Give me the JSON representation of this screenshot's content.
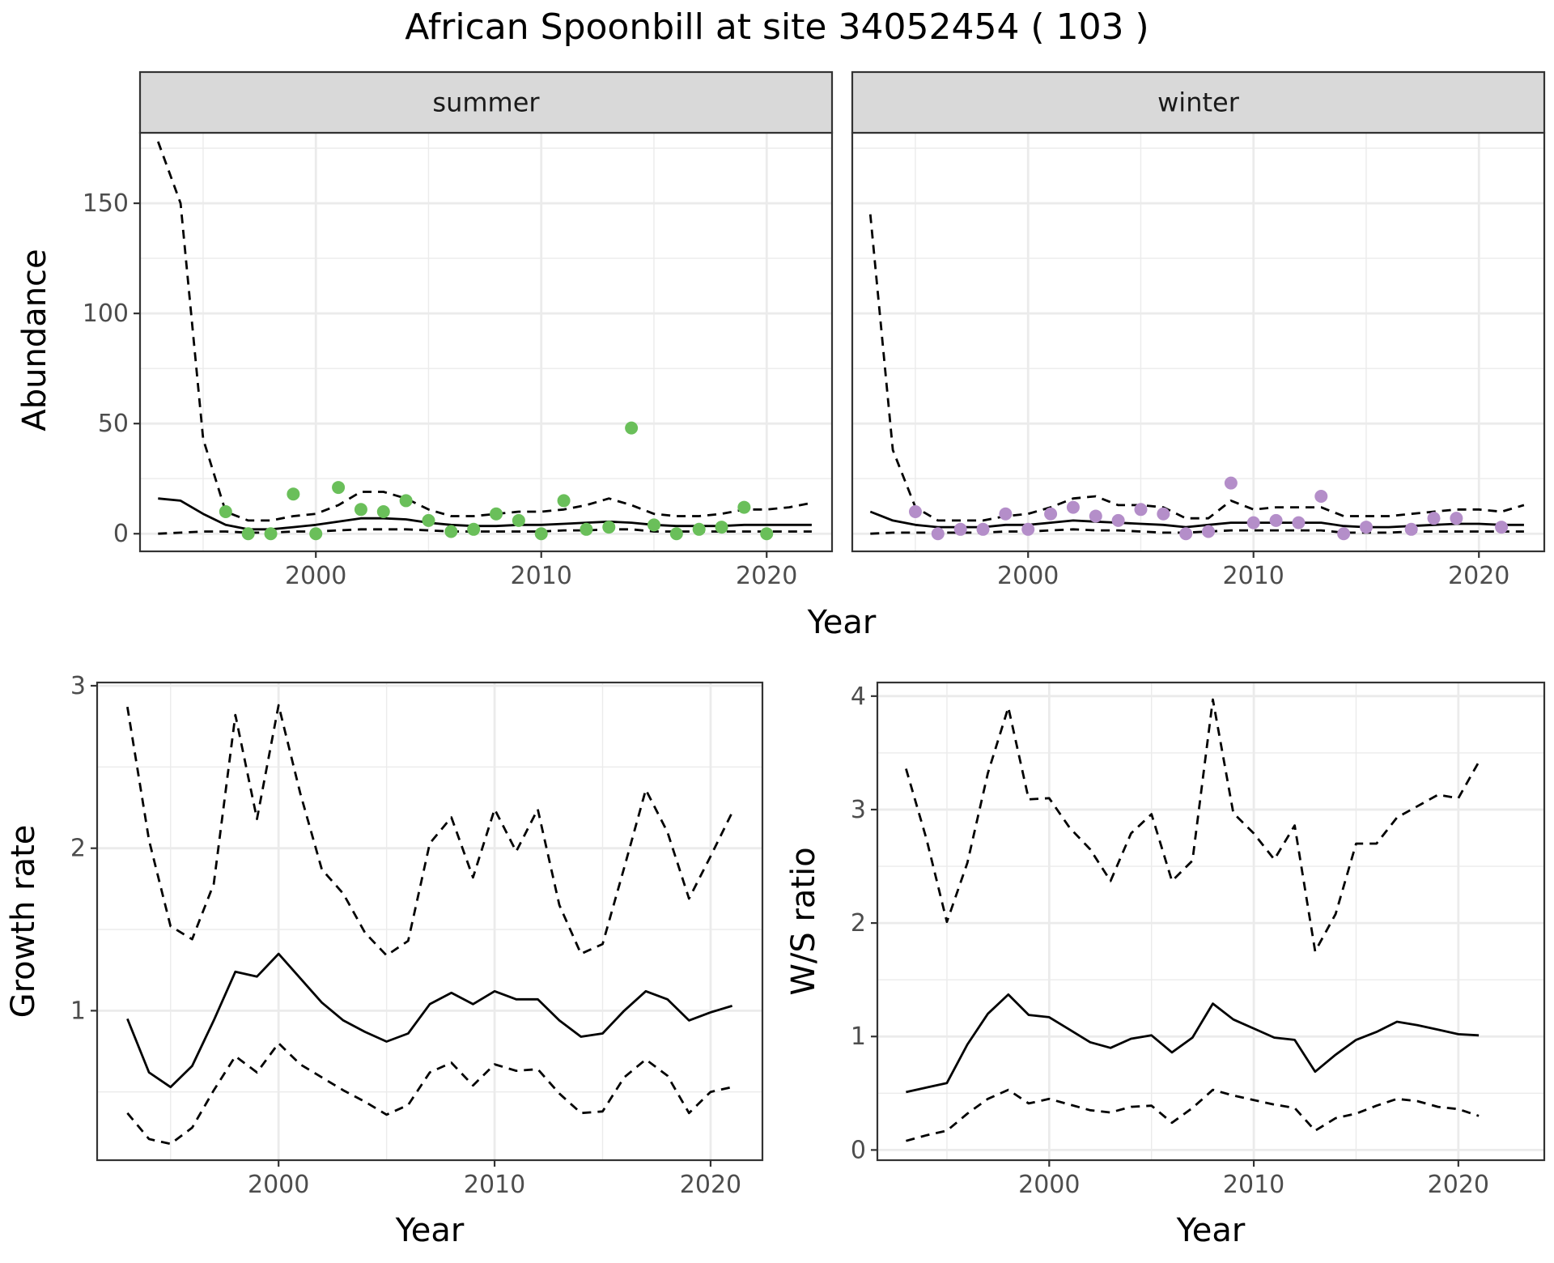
{
  "figure": {
    "title": "African Spoonbill at site 34052454 ( 103 )",
    "top_xlabel": "Year",
    "top_ylabel": "Abundance"
  },
  "colors": {
    "summer_points": "#6abf5a",
    "winter_points": "#b48ec9",
    "lines": "#000000",
    "strip_fill": "#d9d9d9",
    "grid": "#ebebeb"
  },
  "chart_data": [
    {
      "type": "scatter",
      "panel": "summer",
      "strip_label": "summer",
      "xlabel": "Year",
      "ylabel": "Abundance",
      "xlim": [
        1992.2,
        2022.9
      ],
      "ylim": [
        -8,
        182
      ],
      "xticks": [
        2000,
        2010,
        2020
      ],
      "yticks": [
        0,
        50,
        100,
        150
      ],
      "grid": true,
      "point_color": "#6abf5a",
      "points": {
        "x": [
          1996,
          1997,
          1998,
          1999,
          2000,
          2001,
          2002,
          2003,
          2004,
          2005,
          2006,
          2007,
          2008,
          2009,
          2010,
          2011,
          2012,
          2013,
          2014,
          2015,
          2016,
          2017,
          2018,
          2019,
          2020
        ],
        "y": [
          10,
          0,
          0,
          18,
          0,
          21,
          11,
          10,
          15,
          6,
          1,
          2,
          9,
          6,
          0,
          15,
          2,
          3,
          48,
          4,
          0,
          2,
          3,
          12,
          0
        ]
      },
      "series": [
        {
          "style": "solid",
          "x": [
            1993,
            1994,
            1995,
            1996,
            1997,
            1998,
            1999,
            2000,
            2001,
            2002,
            2003,
            2004,
            2005,
            2006,
            2007,
            2008,
            2009,
            2010,
            2011,
            2012,
            2013,
            2014,
            2015,
            2016,
            2017,
            2018,
            2019,
            2020,
            2021,
            2022
          ],
          "y": [
            16,
            15,
            9,
            4,
            2,
            2,
            3,
            4,
            5.5,
            7,
            7,
            6.5,
            5,
            4,
            3.5,
            3.5,
            4,
            4,
            4.5,
            5,
            5.5,
            5,
            4,
            3.5,
            3.5,
            3.5,
            4,
            4,
            4,
            4
          ]
        },
        {
          "style": "dashed",
          "x": [
            1993,
            1994,
            1995,
            1996,
            1997,
            1998,
            1999,
            2000,
            2001,
            2002,
            2003,
            2004,
            2005,
            2006,
            2007,
            2008,
            2009,
            2010,
            2011,
            2012,
            2013,
            2014,
            2015,
            2016,
            2017,
            2018,
            2019,
            2020,
            2021,
            2022
          ],
          "y": [
            178,
            150,
            43,
            10,
            6,
            6,
            8,
            9,
            13,
            19,
            19,
            16,
            11,
            8,
            8,
            9,
            10,
            10,
            11,
            13,
            16,
            13,
            9,
            8,
            8,
            9,
            11,
            11,
            12,
            14
          ]
        },
        {
          "style": "dashed",
          "x": [
            1993,
            1994,
            1995,
            1996,
            1997,
            1998,
            1999,
            2000,
            2001,
            2002,
            2003,
            2004,
            2005,
            2006,
            2007,
            2008,
            2009,
            2010,
            2011,
            2012,
            2013,
            2014,
            2015,
            2016,
            2017,
            2018,
            2019,
            2020,
            2021,
            2022
          ],
          "y": [
            0,
            0.5,
            1,
            1,
            0.5,
            0.5,
            1,
            1,
            1.5,
            2,
            2,
            2,
            1.5,
            1,
            1,
            1,
            1,
            1,
            1.5,
            1.5,
            2,
            2,
            1,
            1,
            1,
            1,
            1,
            1,
            1,
            1
          ]
        }
      ]
    },
    {
      "type": "scatter",
      "panel": "winter",
      "strip_label": "winter",
      "xlabel": "Year",
      "ylabel": "Abundance",
      "xlim": [
        1992.2,
        2022.9
      ],
      "ylim": [
        -8,
        182
      ],
      "xticks": [
        2000,
        2010,
        2020
      ],
      "yticks": [
        0,
        50,
        100,
        150
      ],
      "grid": true,
      "point_color": "#b48ec9",
      "points": {
        "x": [
          1995,
          1996,
          1997,
          1998,
          1999,
          2000,
          2001,
          2002,
          2003,
          2004,
          2005,
          2006,
          2007,
          2008,
          2009,
          2010,
          2011,
          2012,
          2013,
          2014,
          2015,
          2017,
          2018,
          2019,
          2021
        ],
        "y": [
          10,
          0,
          2,
          2,
          9,
          2,
          9,
          12,
          8,
          6,
          11,
          9,
          0,
          1,
          23,
          5,
          6,
          5,
          17,
          0,
          3,
          2,
          7,
          7,
          3
        ]
      },
      "series": [
        {
          "style": "solid",
          "x": [
            1993,
            1994,
            1995,
            1996,
            1997,
            1998,
            1999,
            2000,
            2001,
            2002,
            2003,
            2004,
            2005,
            2006,
            2007,
            2008,
            2009,
            2010,
            2011,
            2012,
            2013,
            2014,
            2015,
            2016,
            2017,
            2018,
            2019,
            2020,
            2021,
            2022
          ],
          "y": [
            10,
            6,
            4,
            3,
            3,
            3,
            4,
            4,
            5,
            6,
            5.5,
            5,
            4.5,
            4,
            3,
            4,
            5,
            5,
            5,
            5,
            5,
            3.5,
            3,
            3,
            3.5,
            4,
            4.5,
            4.5,
            4,
            4
          ]
        },
        {
          "style": "dashed",
          "x": [
            1993,
            1994,
            1995,
            1996,
            1997,
            1998,
            1999,
            2000,
            2001,
            2002,
            2003,
            2004,
            2005,
            2006,
            2007,
            2008,
            2009,
            2010,
            2011,
            2012,
            2013,
            2014,
            2015,
            2016,
            2017,
            2018,
            2019,
            2020,
            2021,
            2022
          ],
          "y": [
            145,
            38,
            12,
            6,
            6,
            6,
            8,
            9,
            12,
            16,
            17,
            13,
            13,
            12,
            7,
            7,
            15,
            11,
            12,
            12,
            12,
            8,
            8,
            8,
            9,
            10,
            11,
            11,
            10,
            13
          ]
        },
        {
          "style": "dashed",
          "x": [
            1993,
            1994,
            1995,
            1996,
            1997,
            1998,
            1999,
            2000,
            2001,
            2002,
            2003,
            2004,
            2005,
            2006,
            2007,
            2008,
            2009,
            2010,
            2011,
            2012,
            2013,
            2014,
            2015,
            2016,
            2017,
            2018,
            2019,
            2020,
            2021,
            2022
          ],
          "y": [
            0,
            0.5,
            0.5,
            0.5,
            0.5,
            0.5,
            1,
            1,
            1.5,
            2,
            1.5,
            1.5,
            1,
            0.5,
            0.5,
            1,
            1.5,
            1.5,
            1.5,
            1.5,
            1.5,
            0.5,
            0.5,
            0.5,
            1,
            1,
            1,
            1,
            1,
            1
          ]
        }
      ]
    },
    {
      "type": "line",
      "panel": "growth",
      "xlabel": "Year",
      "ylabel": "Growth rate",
      "xlim": [
        1991.6,
        2022.4
      ],
      "ylim": [
        0.08,
        3.02
      ],
      "xticks": [
        2000,
        2010,
        2020
      ],
      "yticks": [
        1,
        2,
        3
      ],
      "grid": true,
      "series": [
        {
          "style": "solid",
          "x": [
            1993,
            1994,
            1995,
            1996,
            1997,
            1998,
            1999,
            2000,
            2001,
            2002,
            2003,
            2004,
            2005,
            2006,
            2007,
            2008,
            2009,
            2010,
            2011,
            2012,
            2013,
            2014,
            2015,
            2016,
            2017,
            2018,
            2019,
            2020,
            2021
          ],
          "y": [
            0.95,
            0.62,
            0.53,
            0.66,
            0.94,
            1.24,
            1.21,
            1.35,
            1.2,
            1.05,
            0.94,
            0.87,
            0.81,
            0.86,
            1.04,
            1.11,
            1.04,
            1.12,
            1.07,
            1.07,
            0.94,
            0.84,
            0.86,
            1.0,
            1.12,
            1.07,
            0.94,
            0.99,
            1.03
          ]
        },
        {
          "style": "dashed",
          "x": [
            1993,
            1994,
            1995,
            1996,
            1997,
            1998,
            1999,
            2000,
            2001,
            2002,
            2003,
            2004,
            2005,
            2006,
            2007,
            2008,
            2009,
            2010,
            2011,
            2012,
            2013,
            2014,
            2015,
            2016,
            2017,
            2018,
            2019,
            2020,
            2021
          ],
          "y": [
            2.87,
            2.05,
            1.52,
            1.44,
            1.78,
            2.82,
            2.18,
            2.88,
            2.34,
            1.87,
            1.72,
            1.48,
            1.34,
            1.43,
            2.03,
            2.19,
            1.82,
            2.24,
            1.98,
            2.24,
            1.65,
            1.35,
            1.41,
            1.88,
            2.36,
            2.1,
            1.69,
            1.95,
            2.22
          ]
        },
        {
          "style": "dashed",
          "x": [
            1993,
            1994,
            1995,
            1996,
            1997,
            1998,
            1999,
            2000,
            2001,
            2002,
            2003,
            2004,
            2005,
            2006,
            2007,
            2008,
            2009,
            2010,
            2011,
            2012,
            2013,
            2014,
            2015,
            2016,
            2017,
            2018,
            2019,
            2020,
            2021
          ],
          "y": [
            0.37,
            0.21,
            0.18,
            0.28,
            0.51,
            0.72,
            0.62,
            0.8,
            0.67,
            0.59,
            0.51,
            0.44,
            0.36,
            0.42,
            0.62,
            0.68,
            0.54,
            0.67,
            0.63,
            0.64,
            0.49,
            0.37,
            0.38,
            0.59,
            0.7,
            0.6,
            0.37,
            0.5,
            0.53
          ]
        }
      ]
    },
    {
      "type": "line",
      "panel": "ratio",
      "xlabel": "Year",
      "ylabel": "W/S ratio",
      "xlim": [
        1991.6,
        2024.2
      ],
      "ylim": [
        -0.09,
        4.12
      ],
      "xticks": [
        2000,
        2010,
        2020
      ],
      "yticks": [
        0,
        1,
        2,
        3,
        4
      ],
      "grid": true,
      "series": [
        {
          "style": "solid",
          "x": [
            1993,
            1994,
            1995,
            1996,
            1997,
            1998,
            1999,
            2000,
            2001,
            2002,
            2003,
            2004,
            2005,
            2006,
            2007,
            2008,
            2009,
            2010,
            2011,
            2012,
            2013,
            2014,
            2015,
            2016,
            2017,
            2018,
            2019,
            2020,
            2021
          ],
          "y": [
            0.51,
            0.55,
            0.59,
            0.93,
            1.2,
            1.37,
            1.19,
            1.17,
            1.06,
            0.95,
            0.9,
            0.98,
            1.01,
            0.86,
            0.99,
            1.29,
            1.15,
            1.07,
            0.99,
            0.97,
            0.69,
            0.84,
            0.97,
            1.04,
            1.13,
            1.1,
            1.06,
            1.02,
            1.01
          ]
        },
        {
          "style": "dashed",
          "x": [
            1993,
            1994,
            1995,
            1996,
            1997,
            1998,
            1999,
            2000,
            2001,
            2002,
            2003,
            2004,
            2005,
            2006,
            2007,
            2008,
            2009,
            2010,
            2011,
            2012,
            2013,
            2014,
            2015,
            2016,
            2017,
            2018,
            2019,
            2020,
            2021
          ],
          "y": [
            3.36,
            2.74,
            2.01,
            2.53,
            3.32,
            3.9,
            3.09,
            3.1,
            2.84,
            2.65,
            2.37,
            2.79,
            2.96,
            2.37,
            2.55,
            3.97,
            2.97,
            2.79,
            2.56,
            2.86,
            1.75,
            2.08,
            2.7,
            2.7,
            2.93,
            3.03,
            3.13,
            3.1,
            3.42
          ]
        },
        {
          "style": "dashed",
          "x": [
            1993,
            1994,
            1995,
            1996,
            1997,
            1998,
            1999,
            2000,
            2001,
            2002,
            2003,
            2004,
            2005,
            2006,
            2007,
            2008,
            2009,
            2010,
            2011,
            2012,
            2013,
            2014,
            2015,
            2016,
            2017,
            2018,
            2019,
            2020,
            2021
          ],
          "y": [
            0.08,
            0.13,
            0.17,
            0.32,
            0.45,
            0.53,
            0.41,
            0.45,
            0.4,
            0.35,
            0.33,
            0.38,
            0.39,
            0.24,
            0.37,
            0.53,
            0.48,
            0.44,
            0.4,
            0.37,
            0.17,
            0.28,
            0.32,
            0.39,
            0.45,
            0.43,
            0.38,
            0.36,
            0.3
          ]
        }
      ]
    }
  ]
}
